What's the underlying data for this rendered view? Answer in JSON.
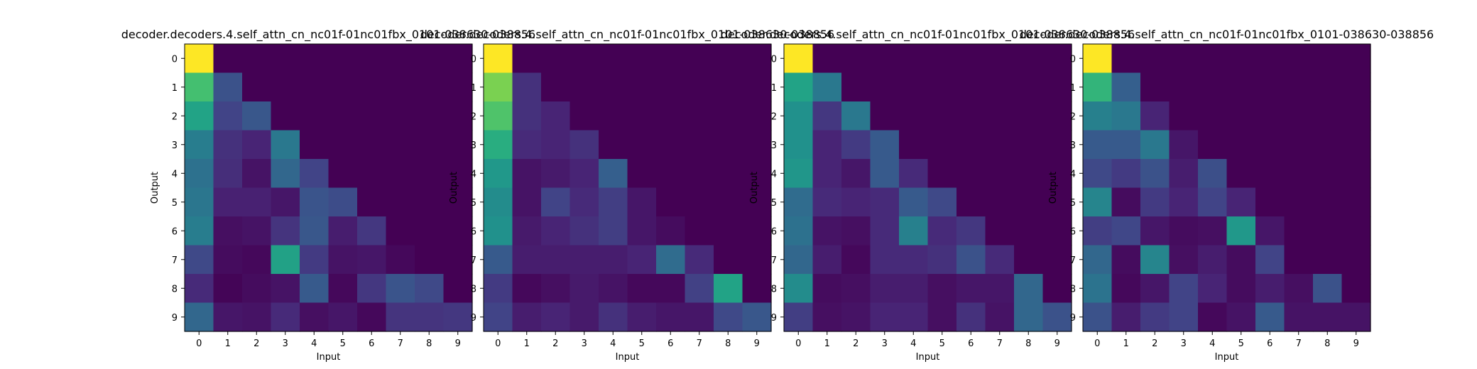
{
  "chart_data": [
    {
      "type": "heatmap",
      "title": "decoder.decoders.4.self_attn_cn_nc01f-01nc01fbx_0101-038630-038856",
      "xlabel": "Input",
      "ylabel": "Output",
      "x_ticks": [
        "0",
        "1",
        "2",
        "3",
        "4",
        "5",
        "6",
        "7",
        "8",
        "9"
      ],
      "y_ticks": [
        "0",
        "1",
        "2",
        "3",
        "4",
        "5",
        "6",
        "7",
        "8",
        "9"
      ],
      "colormap": "viridis",
      "values": [
        [
          1.0,
          0,
          0,
          0,
          0,
          0,
          0,
          0,
          0,
          0
        ],
        [
          0.7,
          0.25,
          0,
          0,
          0,
          0,
          0,
          0,
          0,
          0
        ],
        [
          0.58,
          0.2,
          0.27,
          0,
          0,
          0,
          0,
          0,
          0,
          0
        ],
        [
          0.42,
          0.14,
          0.1,
          0.4,
          0,
          0,
          0,
          0,
          0,
          0
        ],
        [
          0.37,
          0.13,
          0.05,
          0.33,
          0.2,
          0,
          0,
          0,
          0,
          0
        ],
        [
          0.39,
          0.09,
          0.09,
          0.06,
          0.26,
          0.23,
          0,
          0,
          0,
          0
        ],
        [
          0.42,
          0.04,
          0.05,
          0.15,
          0.27,
          0.08,
          0.16,
          0,
          0,
          0
        ],
        [
          0.22,
          0.03,
          0.02,
          0.57,
          0.17,
          0.05,
          0.06,
          0.02,
          0,
          0
        ],
        [
          0.12,
          0.01,
          0.03,
          0.05,
          0.28,
          0.02,
          0.16,
          0.26,
          0.22,
          0
        ],
        [
          0.33,
          0.06,
          0.05,
          0.12,
          0.04,
          0.06,
          0.02,
          0.15,
          0.15,
          0.16
        ]
      ]
    },
    {
      "type": "heatmap",
      "title": "decoder.decoders.4.self_attn_cn_nc01f-01nc01fbx_0101-038630-038856",
      "xlabel": "Input",
      "ylabel": "Output",
      "x_ticks": [
        "0",
        "1",
        "2",
        "3",
        "4",
        "5",
        "6",
        "7",
        "8",
        "9"
      ],
      "y_ticks": [
        "0",
        "1",
        "2",
        "3",
        "4",
        "5",
        "6",
        "7",
        "8",
        "9"
      ],
      "colormap": "viridis",
      "values": [
        [
          1.0,
          0,
          0,
          0,
          0,
          0,
          0,
          0,
          0,
          0
        ],
        [
          0.8,
          0.14,
          0,
          0,
          0,
          0,
          0,
          0,
          0,
          0
        ],
        [
          0.72,
          0.14,
          0.1,
          0,
          0,
          0,
          0,
          0,
          0,
          0
        ],
        [
          0.62,
          0.12,
          0.1,
          0.14,
          0,
          0,
          0,
          0,
          0,
          0
        ],
        [
          0.53,
          0.05,
          0.07,
          0.1,
          0.3,
          0,
          0,
          0,
          0,
          0
        ],
        [
          0.48,
          0.05,
          0.2,
          0.12,
          0.18,
          0.06,
          0,
          0,
          0,
          0
        ],
        [
          0.5,
          0.07,
          0.1,
          0.14,
          0.18,
          0.06,
          0.03,
          0,
          0,
          0
        ],
        [
          0.28,
          0.08,
          0.08,
          0.08,
          0.08,
          0.1,
          0.35,
          0.12,
          0,
          0
        ],
        [
          0.17,
          0.02,
          0.04,
          0.07,
          0.05,
          0.02,
          0.02,
          0.19,
          0.58,
          0
        ],
        [
          0.2,
          0.08,
          0.1,
          0.07,
          0.14,
          0.08,
          0.06,
          0.06,
          0.22,
          0.27
        ]
      ]
    },
    {
      "type": "heatmap",
      "title": "decoder.decoders.4.self_attn_cn_nc01f-01nc01fbx_0101-038630-038856",
      "xlabel": "Input",
      "ylabel": "Output",
      "x_ticks": [
        "0",
        "1",
        "2",
        "3",
        "4",
        "5",
        "6",
        "7",
        "8",
        "9"
      ],
      "y_ticks": [
        "0",
        "1",
        "2",
        "3",
        "4",
        "5",
        "6",
        "7",
        "8",
        "9"
      ],
      "colormap": "viridis",
      "values": [
        [
          1.0,
          0,
          0,
          0,
          0,
          0,
          0,
          0,
          0,
          0
        ],
        [
          0.58,
          0.4,
          0,
          0,
          0,
          0,
          0,
          0,
          0,
          0
        ],
        [
          0.5,
          0.16,
          0.4,
          0,
          0,
          0,
          0,
          0,
          0,
          0
        ],
        [
          0.5,
          0.1,
          0.17,
          0.28,
          0,
          0,
          0,
          0,
          0,
          0
        ],
        [
          0.52,
          0.1,
          0.06,
          0.28,
          0.12,
          0,
          0,
          0,
          0,
          0
        ],
        [
          0.35,
          0.12,
          0.1,
          0.12,
          0.28,
          0.22,
          0,
          0,
          0,
          0
        ],
        [
          0.37,
          0.05,
          0.04,
          0.12,
          0.43,
          0.12,
          0.16,
          0,
          0,
          0
        ],
        [
          0.33,
          0.08,
          0.02,
          0.12,
          0.12,
          0.14,
          0.25,
          0.12,
          0,
          0
        ],
        [
          0.48,
          0.03,
          0.04,
          0.08,
          0.08,
          0.04,
          0.06,
          0.06,
          0.33,
          0
        ],
        [
          0.18,
          0.04,
          0.05,
          0.1,
          0.1,
          0.04,
          0.14,
          0.05,
          0.33,
          0.25
        ]
      ]
    },
    {
      "type": "heatmap",
      "title": "decoder.decoders.4.self_attn_cn_nc01f-01nc01fbx_0101-038630-038856",
      "xlabel": "Input",
      "ylabel": "Output",
      "x_ticks": [
        "0",
        "1",
        "2",
        "3",
        "4",
        "5",
        "6",
        "7",
        "8",
        "9"
      ],
      "y_ticks": [
        "0",
        "1",
        "2",
        "3",
        "4",
        "5",
        "6",
        "7",
        "8",
        "9"
      ],
      "colormap": "viridis",
      "values": [
        [
          1.0,
          0,
          0,
          0,
          0,
          0,
          0,
          0,
          0,
          0
        ],
        [
          0.65,
          0.3,
          0,
          0,
          0,
          0,
          0,
          0,
          0,
          0
        ],
        [
          0.43,
          0.4,
          0.1,
          0,
          0,
          0,
          0,
          0,
          0,
          0
        ],
        [
          0.28,
          0.28,
          0.4,
          0.06,
          0,
          0,
          0,
          0,
          0,
          0
        ],
        [
          0.22,
          0.17,
          0.25,
          0.08,
          0.24,
          0,
          0,
          0,
          0,
          0
        ],
        [
          0.45,
          0.03,
          0.17,
          0.1,
          0.2,
          0.1,
          0,
          0,
          0,
          0
        ],
        [
          0.18,
          0.21,
          0.06,
          0.03,
          0.04,
          0.53,
          0.06,
          0,
          0,
          0
        ],
        [
          0.33,
          0.03,
          0.45,
          0.04,
          0.08,
          0.03,
          0.2,
          0,
          0,
          0
        ],
        [
          0.38,
          0.02,
          0.06,
          0.2,
          0.1,
          0.03,
          0.08,
          0.04,
          0.25,
          0
        ],
        [
          0.25,
          0.08,
          0.17,
          0.2,
          0.02,
          0.05,
          0.28,
          0.05,
          0.05,
          0.05
        ]
      ]
    }
  ]
}
